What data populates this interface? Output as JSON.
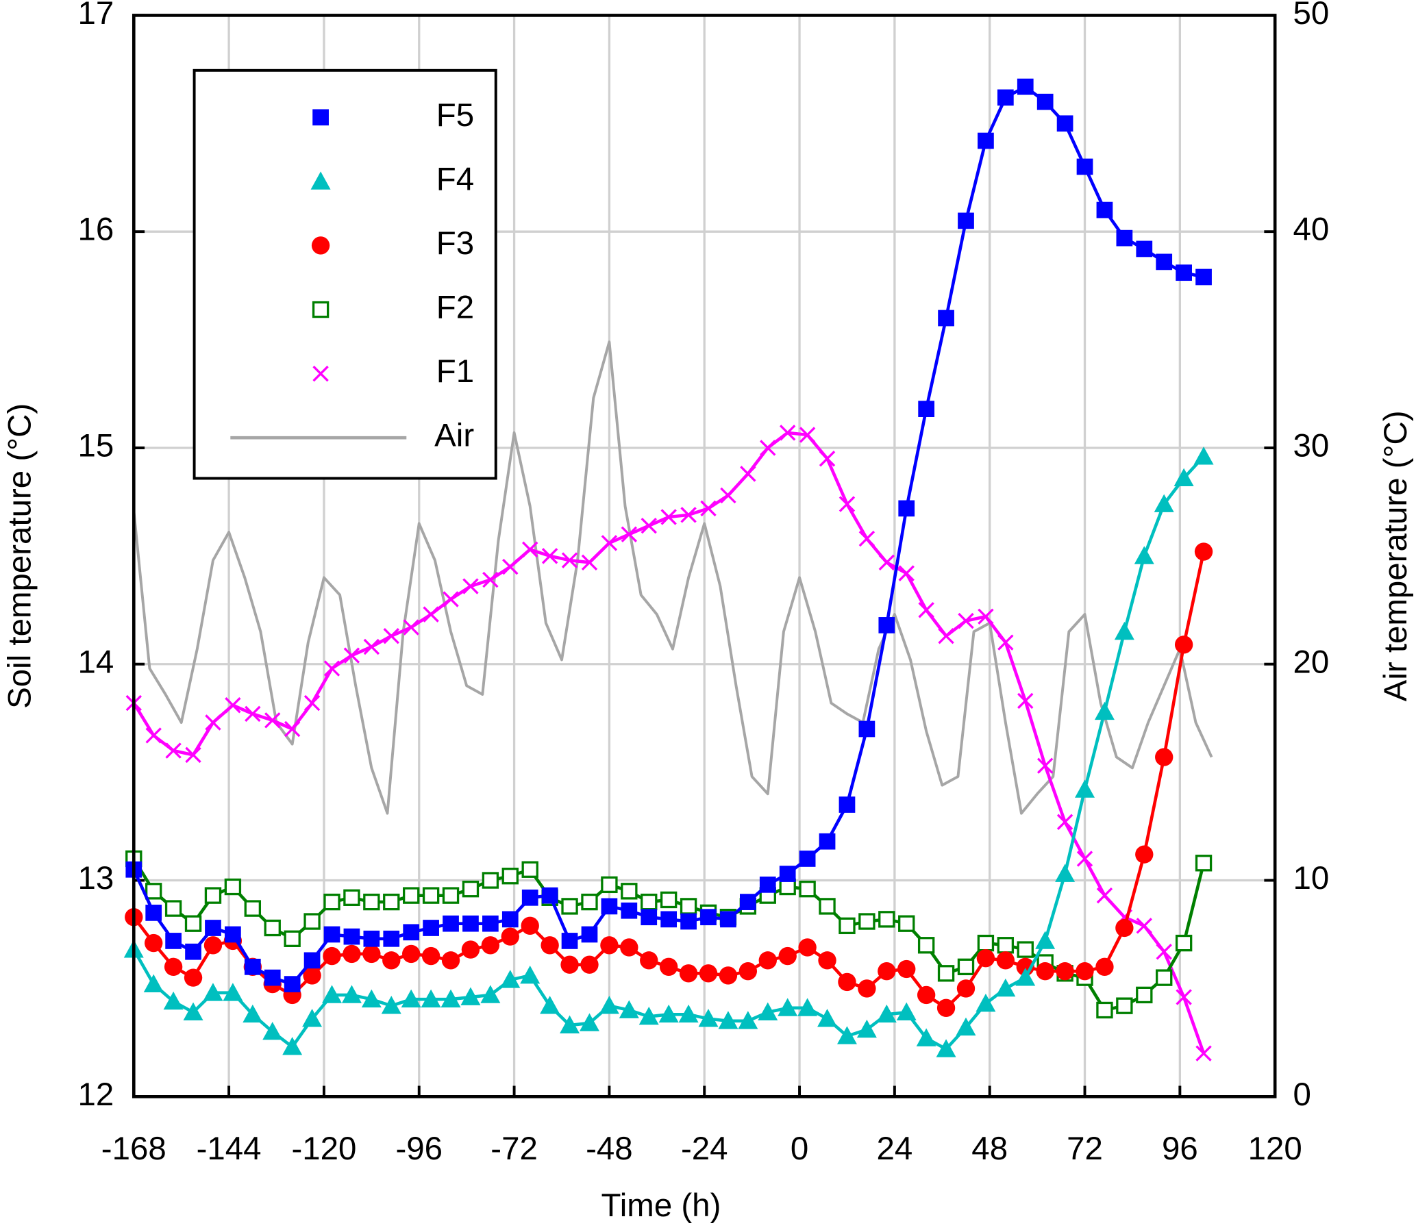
{
  "chart_data": {
    "type": "line",
    "xlabel": "Time (h)",
    "ylabel": "Soil temperature (°C)",
    "y2label": "Air temperature (°C)",
    "xlim": [
      -168,
      120
    ],
    "xticks": [
      -168,
      -144,
      -120,
      -96,
      -72,
      -48,
      -24,
      0,
      24,
      48,
      72,
      96,
      120
    ],
    "ylim": [
      12,
      17
    ],
    "yticks": [
      12,
      13,
      14,
      15,
      16,
      17
    ],
    "y2lim": [
      0,
      50
    ],
    "y2ticks": [
      0,
      10,
      20,
      30,
      40,
      50
    ],
    "grid": true,
    "legend": "upper left",
    "x": [
      -168,
      -163,
      -158,
      -153,
      -148,
      -143,
      -138,
      -133,
      -128,
      -123,
      -118,
      -113,
      -108,
      -103,
      -98,
      -93,
      -88,
      -83,
      -78,
      -73,
      -68,
      -63,
      -58,
      -53,
      -48,
      -43,
      -38,
      -33,
      -28,
      -23,
      -18,
      -13,
      -8,
      -3,
      2,
      7,
      12,
      17,
      22,
      27,
      32,
      37,
      42,
      47,
      52,
      57,
      62,
      67,
      72,
      77,
      82,
      87,
      92,
      97,
      102
    ],
    "series": [
      {
        "name": "F5",
        "color": "#0000ff",
        "marker": "square",
        "values": [
          13.05,
          12.85,
          12.72,
          12.67,
          12.78,
          12.75,
          12.6,
          12.55,
          12.52,
          12.63,
          12.75,
          12.74,
          12.73,
          12.73,
          12.76,
          12.78,
          12.8,
          12.8,
          12.8,
          12.82,
          12.92,
          12.93,
          12.72,
          12.75,
          12.88,
          12.86,
          12.83,
          12.82,
          12.81,
          12.83,
          12.82,
          12.9,
          12.98,
          13.03,
          13.1,
          13.18,
          13.35,
          13.7,
          14.18,
          14.72,
          15.18,
          15.6,
          16.05,
          16.42,
          16.62,
          16.67,
          16.6,
          16.5,
          16.3,
          16.1,
          15.97,
          15.92,
          15.86,
          15.81,
          15.79
        ]
      },
      {
        "name": "F4",
        "color": "#00bfbf",
        "marker": "triangle",
        "values": [
          12.68,
          12.52,
          12.44,
          12.39,
          12.48,
          12.48,
          12.38,
          12.3,
          12.23,
          12.36,
          12.47,
          12.47,
          12.45,
          12.42,
          12.45,
          12.45,
          12.45,
          12.46,
          12.47,
          12.54,
          12.56,
          12.42,
          12.33,
          12.34,
          12.42,
          12.4,
          12.37,
          12.38,
          12.38,
          12.36,
          12.35,
          12.35,
          12.39,
          12.41,
          12.41,
          12.36,
          12.28,
          12.31,
          12.38,
          12.39,
          12.27,
          12.22,
          12.32,
          12.43,
          12.5,
          12.55,
          12.72,
          13.03,
          13.42,
          13.78,
          14.15,
          14.5,
          14.74,
          14.86,
          14.96
        ]
      },
      {
        "name": "F3",
        "color": "#ff0000",
        "marker": "circle",
        "values": [
          12.83,
          12.71,
          12.6,
          12.55,
          12.7,
          12.72,
          12.6,
          12.52,
          12.47,
          12.56,
          12.65,
          12.66,
          12.66,
          12.63,
          12.66,
          12.65,
          12.63,
          12.68,
          12.7,
          12.74,
          12.79,
          12.7,
          12.61,
          12.61,
          12.7,
          12.69,
          12.63,
          12.6,
          12.57,
          12.57,
          12.56,
          12.58,
          12.63,
          12.65,
          12.69,
          12.63,
          12.53,
          12.5,
          12.58,
          12.59,
          12.47,
          12.41,
          12.5,
          12.64,
          12.63,
          12.6,
          12.58,
          12.58,
          12.58,
          12.6,
          12.78,
          13.12,
          13.57,
          14.09,
          14.52
        ]
      },
      {
        "name": "F2",
        "color": "#007f00",
        "marker": "open-square",
        "values": [
          13.1,
          12.95,
          12.87,
          12.8,
          12.93,
          12.97,
          12.87,
          12.78,
          12.73,
          12.81,
          12.9,
          12.92,
          12.9,
          12.9,
          12.93,
          12.93,
          12.93,
          12.96,
          13.0,
          13.02,
          13.05,
          12.92,
          12.88,
          12.9,
          12.98,
          12.95,
          12.9,
          12.91,
          12.88,
          12.85,
          12.83,
          12.88,
          12.93,
          12.97,
          12.96,
          12.88,
          12.79,
          12.81,
          12.82,
          12.8,
          12.7,
          12.57,
          12.6,
          12.71,
          12.7,
          12.68,
          12.62,
          12.57,
          12.55,
          12.4,
          12.42,
          12.47,
          12.55,
          12.71,
          13.08
        ]
      },
      {
        "name": "F1",
        "color": "#ff00ff",
        "marker": "x",
        "values": [
          13.82,
          13.67,
          13.6,
          13.58,
          13.73,
          13.81,
          13.77,
          13.74,
          13.7,
          13.82,
          13.98,
          14.04,
          14.08,
          14.13,
          14.17,
          14.23,
          14.3,
          14.36,
          14.39,
          14.45,
          14.53,
          14.5,
          14.48,
          14.47,
          14.56,
          14.6,
          14.64,
          14.68,
          14.69,
          14.72,
          14.78,
          14.88,
          15.0,
          15.07,
          15.06,
          14.95,
          14.74,
          14.58,
          14.47,
          14.42,
          14.25,
          14.13,
          14.2,
          14.22,
          14.1,
          13.83,
          13.53,
          13.27,
          13.1,
          12.93,
          12.83,
          12.79,
          12.67,
          12.46,
          12.2
        ]
      },
      {
        "name": "Air",
        "color": "#a6a6a6",
        "marker": "none",
        "axis": "y2",
        "x": [
          -168,
          -164,
          -160,
          -156,
          -152,
          -148,
          -144,
          -140,
          -136,
          -132,
          -128,
          -124,
          -120,
          -116,
          -112,
          -108,
          -104,
          -100,
          -96,
          -92,
          -88,
          -84,
          -80,
          -76,
          -72,
          -68,
          -64,
          -60,
          -56,
          -52,
          -48,
          -44,
          -40,
          -36,
          -32,
          -28,
          -24,
          -20,
          -16,
          -12,
          -8,
          -4,
          0,
          4,
          8,
          12,
          16,
          20,
          24,
          28,
          32,
          36,
          40,
          44,
          48,
          52,
          56,
          60,
          64,
          68,
          72,
          76,
          80,
          84,
          88,
          92,
          96,
          100,
          104
        ],
        "values": [
          27.1,
          19.8,
          18.6,
          17.3,
          20.7,
          24.8,
          26.1,
          24,
          21.5,
          17.3,
          16.3,
          21,
          24,
          23.2,
          19,
          15.2,
          13.1,
          21.5,
          26.5,
          24.8,
          21.5,
          19,
          18.6,
          25.7,
          30.7,
          27.3,
          21.9,
          20.2,
          24.8,
          32.3,
          34.9,
          27.3,
          23.2,
          22.3,
          20.7,
          24,
          26.5,
          23.6,
          19,
          14.8,
          14,
          21.5,
          24,
          21.5,
          18.2,
          17.7,
          17.3,
          20.7,
          22.3,
          20.2,
          16.9,
          14.4,
          14.8,
          21.5,
          21.9,
          17.3,
          13.1,
          14,
          14.8,
          21.5,
          22.3,
          18.2,
          15.7,
          15.2,
          17.3,
          19,
          20.7,
          17.3,
          15.7
        ]
      }
    ]
  }
}
